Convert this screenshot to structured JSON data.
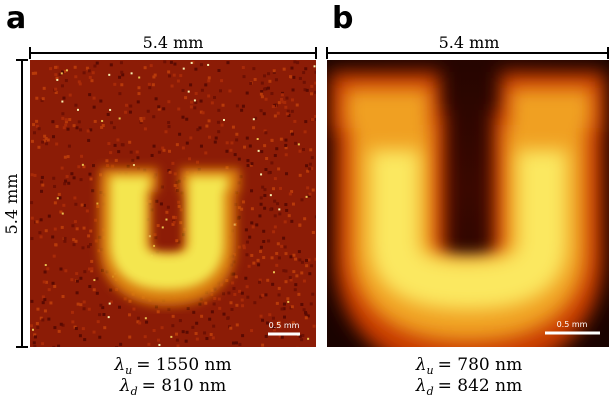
{
  "panels": [
    {
      "label": "a",
      "width_label": "5.4 mm",
      "height_label": "5.4 mm",
      "scale_bar": "0.5 mm",
      "caption": [
        {
          "symbol": "λ",
          "sub": "u",
          "value": "= 1550 nm"
        },
        {
          "symbol": "λ",
          "sub": "d",
          "value": "= 810 nm"
        }
      ]
    },
    {
      "label": "b",
      "width_label": "5.4 mm",
      "scale_bar": "0.5 mm",
      "caption": [
        {
          "symbol": "λ",
          "sub": "u",
          "value": "= 780 nm"
        },
        {
          "symbol": "λ",
          "sub": "d",
          "value": "= 842 nm"
        }
      ]
    }
  ]
}
